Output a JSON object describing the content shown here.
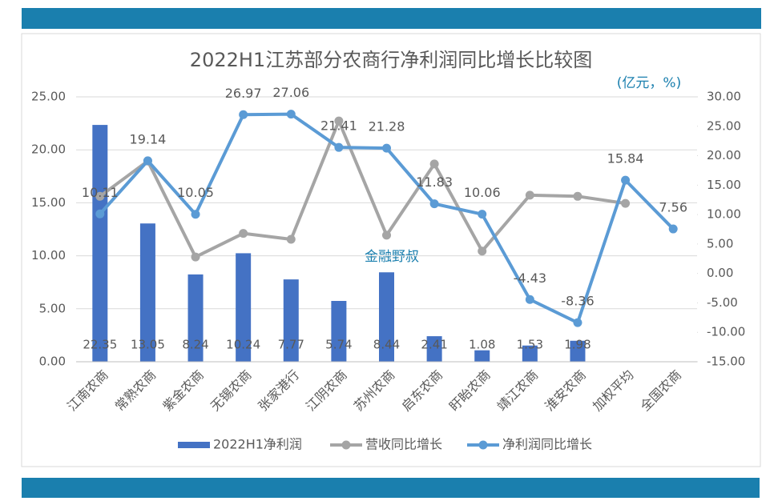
{
  "chart_data": {
    "type": "combo",
    "title": "2022H1江苏部分农商行净利润同比增长比较图",
    "unit_note": "(亿元，%)",
    "watermark": "金融野叔",
    "categories": [
      "江南农商",
      "常熟农商",
      "紫金农商",
      "无锡农商",
      "张家港行",
      "江阴农商",
      "苏州农商",
      "启东农商",
      "盱眙农商",
      "靖江农商",
      "淮安农商",
      "加权平均",
      "全国农商"
    ],
    "ylim": [
      0,
      25
    ],
    "yticks": [
      {
        "value": 0,
        "label": "0.00"
      },
      {
        "value": 5,
        "label": "5.00"
      },
      {
        "value": 10,
        "label": "10.00"
      },
      {
        "value": 15,
        "label": "15.00"
      },
      {
        "value": 20,
        "label": "20.00"
      },
      {
        "value": 25,
        "label": "25.00"
      }
    ],
    "y2lim": [
      -15,
      30
    ],
    "y2ticks": [
      {
        "value": -15,
        "label": "-15.00"
      },
      {
        "value": -10,
        "label": "-10.00"
      },
      {
        "value": -5,
        "label": "-5.00"
      },
      {
        "value": 0,
        "label": "0.00"
      },
      {
        "value": 5,
        "label": "5.00"
      },
      {
        "value": 10,
        "label": "10.00"
      },
      {
        "value": 15,
        "label": "15.00"
      },
      {
        "value": 20,
        "label": "20.00"
      },
      {
        "value": 25,
        "label": "25.00"
      },
      {
        "value": 30,
        "label": "30.00"
      }
    ],
    "grid": true,
    "legend": "bottom",
    "series": [
      {
        "name": "2022H1净利润",
        "type": "bar",
        "color": "#4472c4",
        "values": [
          22.35,
          13.05,
          8.24,
          10.24,
          7.77,
          5.74,
          8.44,
          2.41,
          1.08,
          1.53,
          1.98,
          null,
          null
        ],
        "show_labels": true
      },
      {
        "name": "营收同比增长",
        "type": "line",
        "axis": "y2",
        "color": "#a5a5a5",
        "values": [
          13.1,
          19.1,
          2.8,
          6.8,
          5.8,
          25.9,
          6.5,
          18.6,
          3.8,
          13.3,
          13.1,
          11.9,
          null
        ],
        "show_labels": false
      },
      {
        "name": "净利润同比增长",
        "type": "line",
        "axis": "y2",
        "color": "#5b9bd5",
        "values": [
          10.11,
          19.14,
          10.05,
          26.97,
          27.06,
          21.41,
          21.28,
          11.83,
          10.06,
          -4.43,
          -8.36,
          15.84,
          7.56
        ],
        "show_labels": true
      }
    ]
  }
}
